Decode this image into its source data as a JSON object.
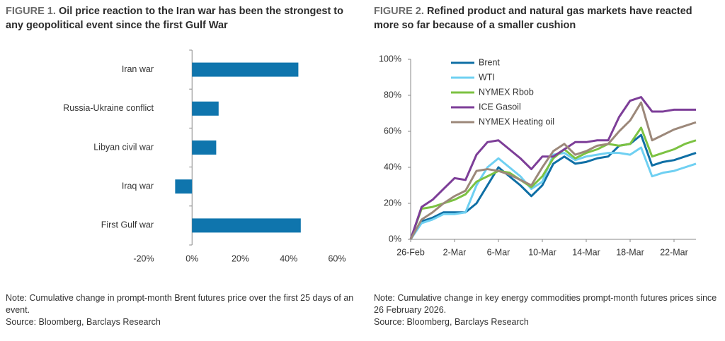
{
  "chart_data": [
    {
      "type": "bar",
      "orientation": "horizontal",
      "figure_label": "FIGURE 1.",
      "title": "Oil price reaction to the Iran war has been the strongest to any geopolitical event since the first Gulf War",
      "categories": [
        "Iran war",
        "Russia-Ukraine conflict",
        "Libyan civil war",
        "Iraq war",
        "First Gulf war"
      ],
      "values": [
        44,
        11,
        10,
        -7,
        45
      ],
      "color": "#0f75ad",
      "xlim": [
        -20,
        60
      ],
      "xticks": [
        {
          "value": -20,
          "label": "-20%"
        },
        {
          "value": 0,
          "label": "0%"
        },
        {
          "value": 20,
          "label": "20%"
        },
        {
          "value": 40,
          "label": "40%"
        },
        {
          "value": 60,
          "label": "60%"
        }
      ],
      "note": "Note: Cumulative change in prompt-month Brent futures price over the first 25 days of an event.",
      "source": "Source: Bloomberg, Barclays Research"
    },
    {
      "type": "line",
      "figure_label": "FIGURE 2.",
      "title": "Refined product and natural gas markets have reacted more so far because of a smaller cushion",
      "categories": [
        "26-Feb",
        null,
        null,
        null,
        "2-Mar",
        null,
        null,
        null,
        "6-Mar",
        null,
        null,
        null,
        "10-Mar",
        null,
        null,
        null,
        "14-Mar",
        null,
        null,
        null,
        "18-Mar",
        null,
        null,
        null,
        "22-Mar",
        null,
        null
      ],
      "series": [
        {
          "name": "Brent",
          "color": "#0f6fa5",
          "values": [
            0,
            10,
            12,
            15,
            15,
            15,
            20,
            30,
            40,
            35,
            30,
            24,
            30,
            42,
            46,
            42,
            43,
            45,
            46,
            52,
            53,
            58,
            41,
            43,
            44,
            46,
            48
          ]
        },
        {
          "name": "WTI",
          "color": "#6fd0f2",
          "values": [
            0,
            9,
            11,
            14,
            14,
            15,
            30,
            40,
            45,
            40,
            35,
            28,
            32,
            47,
            48,
            44,
            46,
            47,
            48,
            48,
            47,
            51,
            35,
            37,
            38,
            40,
            42
          ]
        },
        {
          "name": "NYMEX Rbob",
          "color": "#7cc242",
          "values": [
            0,
            17,
            18,
            20,
            22,
            25,
            32,
            35,
            38,
            37,
            33,
            29,
            35,
            45,
            50,
            45,
            48,
            50,
            53,
            52,
            53,
            62,
            46,
            48,
            50,
            53,
            55
          ]
        },
        {
          "name": "ICE Gasoil",
          "color": "#7d3e98",
          "values": [
            0,
            18,
            22,
            28,
            34,
            33,
            47,
            54,
            55,
            50,
            45,
            39,
            46,
            46,
            50,
            54,
            54,
            55,
            55,
            68,
            77,
            79,
            71,
            71,
            72,
            72,
            72
          ]
        },
        {
          "name": "NYMEX Heating oil",
          "color": "#9c887a",
          "values": [
            0,
            11,
            15,
            20,
            24,
            27,
            38,
            39,
            38,
            36,
            33,
            30,
            40,
            49,
            53,
            47,
            49,
            52,
            53,
            60,
            66,
            76,
            55,
            58,
            61,
            63,
            65
          ]
        }
      ],
      "ylim": [
        0,
        100
      ],
      "yticks": [
        {
          "value": 0,
          "label": "0%"
        },
        {
          "value": 20,
          "label": "20%"
        },
        {
          "value": 40,
          "label": "40%"
        },
        {
          "value": 60,
          "label": "60%"
        },
        {
          "value": 80,
          "label": "80%"
        },
        {
          "value": 100,
          "label": "100%"
        }
      ],
      "legend": "top-left",
      "note": "Note: Cumulative change in key energy commodities prompt-month futures prices since 26 February 2026.",
      "source": "Source: Bloomberg, Barclays Research"
    }
  ]
}
